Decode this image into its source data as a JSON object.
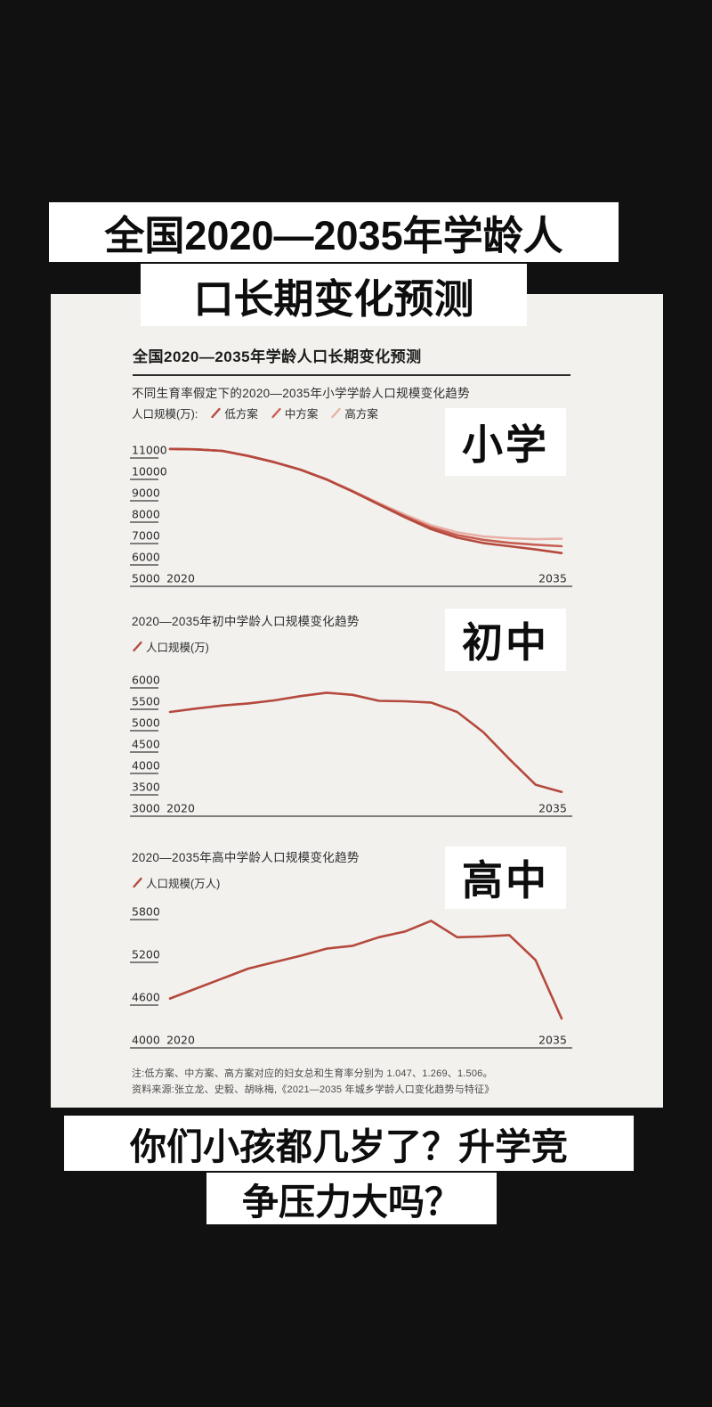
{
  "colors": {
    "background": "#111111",
    "panel": "#f2f1ee",
    "card": "#ffffff",
    "ink": "#0d0d0d",
    "line_low": "#b5493d",
    "line_mid": "#c85e52",
    "line_high": "#e8b0a6"
  },
  "top_caption": {
    "line1": "全国2020—2035年学龄人",
    "line2": "口长期变化预测"
  },
  "bottom_caption": {
    "line1": "你们小孩都几岁了？升学竞",
    "line2": "争压力大吗？"
  },
  "panel": {
    "header": "全国2020—2035年学龄人口长期变化预测",
    "note_fertility": "注:低方案、中方案、高方案对应的妇女总和生育率分别为 1.047、1.269、1.506。",
    "note_source": "资料来源:张立龙、史毅、胡咏梅,《2021—2035 年城乡学龄人口变化趋势与特征》"
  },
  "chart_data": [
    {
      "type": "line",
      "title": "不同生育率假定下的2020—2035年小学学龄人口规模变化趋势",
      "badge": "小学",
      "legend_prefix": "人口规模(万):",
      "legend_position": "top",
      "grid": false,
      "x": [
        2020,
        2021,
        2022,
        2023,
        2024,
        2025,
        2026,
        2027,
        2028,
        2029,
        2030,
        2031,
        2032,
        2033,
        2034,
        2035
      ],
      "xlim": [
        2020,
        2035
      ],
      "xtick_labels": [
        "2020",
        "2035"
      ],
      "yticks": [
        11000,
        10000,
        9000,
        8000,
        7000,
        6000,
        5000
      ],
      "ylim": [
        5000,
        11000
      ],
      "series": [
        {
          "name": "低方案",
          "color": "#b5493d",
          "values": [
            11050,
            11030,
            10960,
            10720,
            10430,
            10080,
            9620,
            9060,
            8450,
            7850,
            7300,
            6900,
            6650,
            6500,
            6350,
            6180
          ]
        },
        {
          "name": "中方案",
          "color": "#c85e52",
          "values": [
            11050,
            11030,
            10960,
            10720,
            10430,
            10080,
            9620,
            9060,
            8470,
            7900,
            7380,
            7020,
            6800,
            6660,
            6570,
            6500
          ]
        },
        {
          "name": "高方案",
          "color": "#e8b0a6",
          "values": [
            11050,
            11030,
            10960,
            10720,
            10430,
            10080,
            9630,
            9090,
            8520,
            7980,
            7480,
            7150,
            6960,
            6870,
            6830,
            6850
          ]
        }
      ]
    },
    {
      "type": "line",
      "title": "2020—2035年初中学龄人口规模变化趋势",
      "badge": "初中",
      "legend_prefix": "",
      "legend_position": "top",
      "grid": false,
      "x": [
        2020,
        2021,
        2022,
        2023,
        2024,
        2025,
        2026,
        2027,
        2028,
        2029,
        2030,
        2031,
        2032,
        2033,
        2034,
        2035
      ],
      "xlim": [
        2020,
        2035
      ],
      "xtick_labels": [
        "2020",
        "2035"
      ],
      "yticks": [
        6000,
        5500,
        5000,
        4500,
        4000,
        3500,
        3000
      ],
      "ylim": [
        3000,
        6000
      ],
      "series": [
        {
          "name": "人口规模(万)",
          "color": "#b5493d",
          "values": [
            5250,
            5330,
            5400,
            5450,
            5520,
            5620,
            5700,
            5650,
            5510,
            5500,
            5470,
            5250,
            4780,
            4150,
            3550,
            3380
          ]
        }
      ]
    },
    {
      "type": "line",
      "title": "2020—2035年高中学龄人口规模变化趋势",
      "badge": "高中",
      "legend_prefix": "",
      "legend_position": "top",
      "grid": false,
      "x": [
        2020,
        2021,
        2022,
        2023,
        2024,
        2025,
        2026,
        2027,
        2028,
        2029,
        2030,
        2031,
        2032,
        2033,
        2034,
        2035
      ],
      "xlim": [
        2020,
        2035
      ],
      "xtick_labels": [
        "2020",
        "2035"
      ],
      "yticks": [
        5800,
        5200,
        4600,
        4000
      ],
      "ylim": [
        4000,
        5800
      ],
      "series": [
        {
          "name": "人口规模(万人)",
          "color": "#b5493d",
          "values": [
            4580,
            4720,
            4860,
            5000,
            5090,
            5180,
            5280,
            5320,
            5440,
            5520,
            5670,
            5440,
            5450,
            5470,
            5120,
            4300
          ]
        }
      ]
    }
  ]
}
